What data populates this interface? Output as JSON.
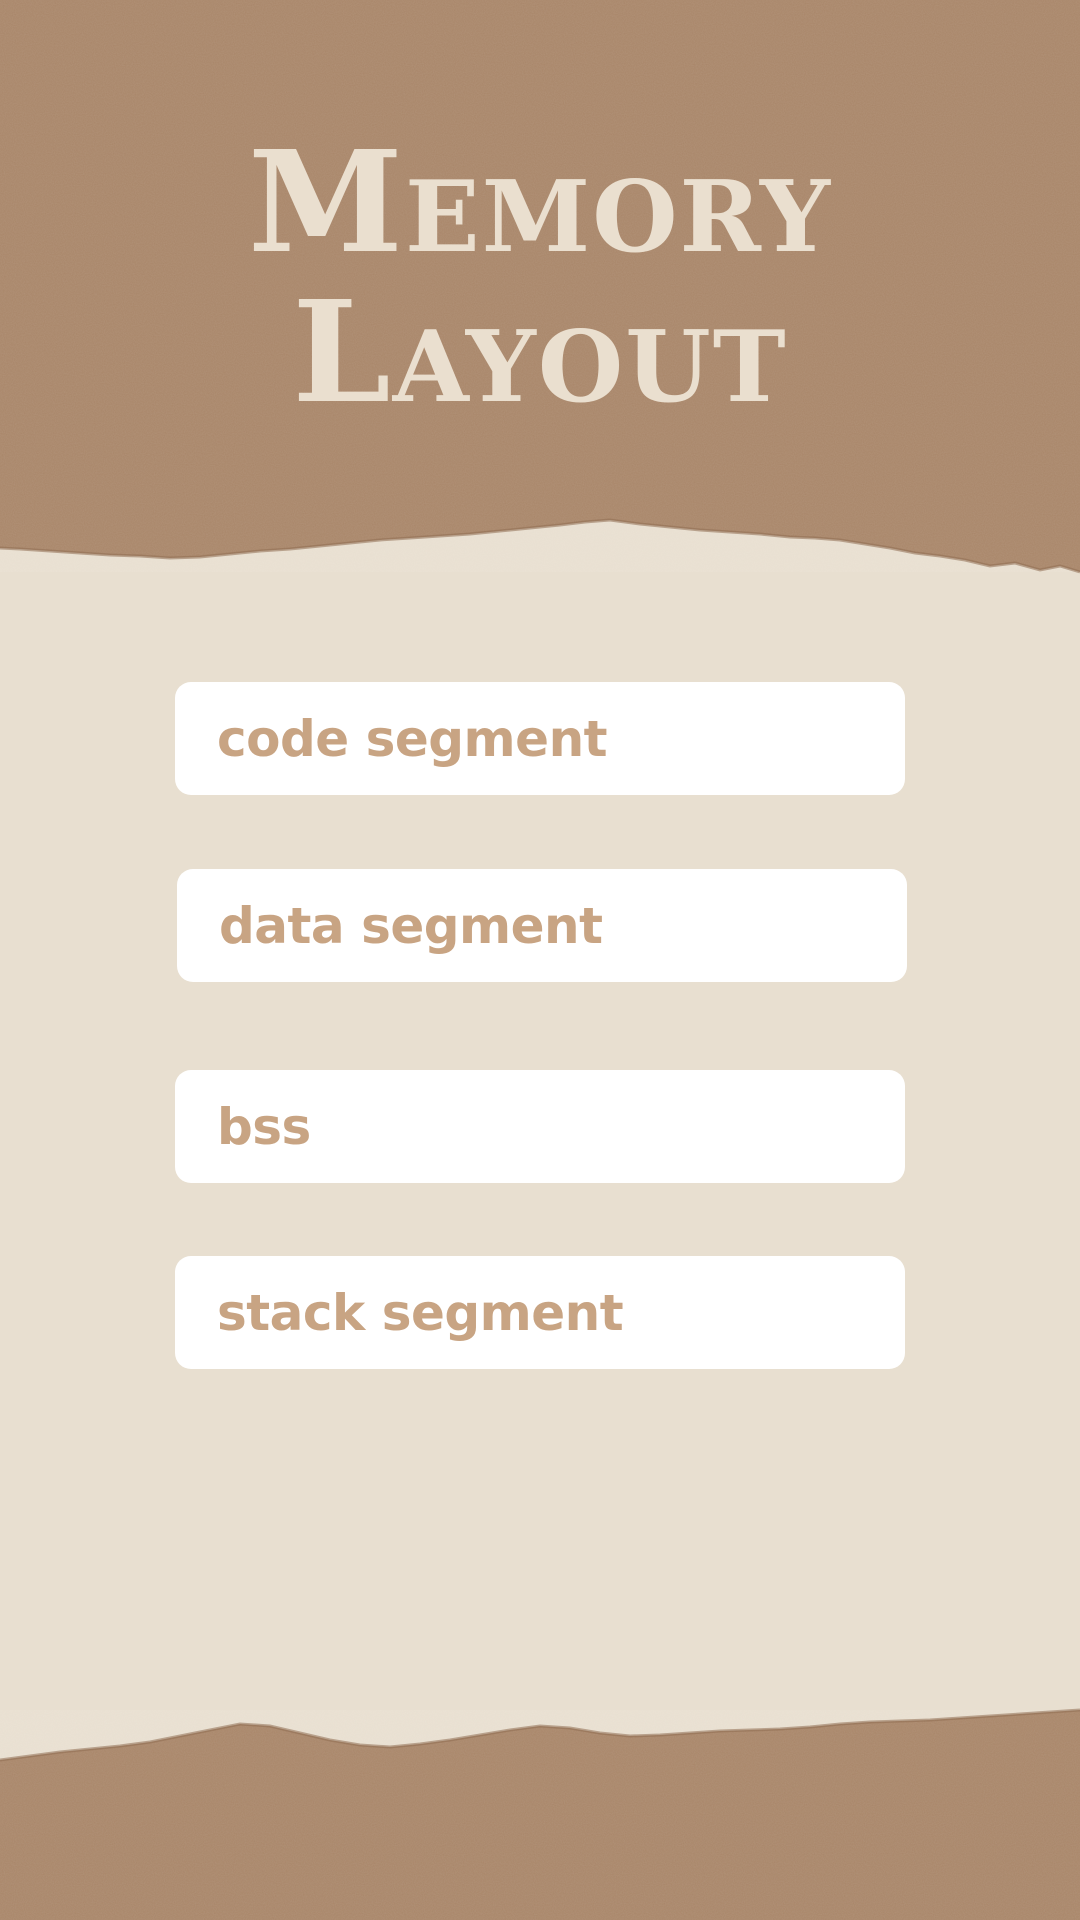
{
  "title": {
    "line1": "Memory",
    "line2": "Layout"
  },
  "segments": [
    {
      "label": "code segment"
    },
    {
      "label": "data segment"
    },
    {
      "label": "bss"
    },
    {
      "label": "stack segment"
    }
  ],
  "colors": {
    "background": "#e8dfd0",
    "paper": "#a88568",
    "title_text": "#eadfcf",
    "card": "#ffffff",
    "card_text": "#c8a483"
  }
}
